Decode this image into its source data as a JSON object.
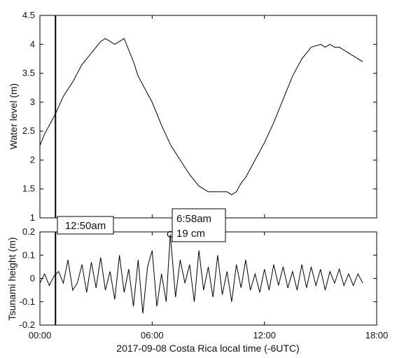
{
  "chart_data": [
    {
      "type": "line",
      "panel": "top",
      "ylabel": "Water level (m)",
      "xlabel": "",
      "xlim": [
        0,
        18
      ],
      "ylim": [
        1,
        4.5
      ],
      "x_tick_labels": [],
      "y_tick_labels": [
        "1",
        "1.5",
        "2",
        "2.5",
        "3",
        "3.5",
        "4",
        "4.5"
      ],
      "y_ticks": [
        1,
        1.5,
        2,
        2.5,
        3,
        3.5,
        4,
        4.5
      ],
      "grid": false,
      "vline_x": 0.833,
      "series": [
        {
          "x": [
            0,
            0.25,
            0.5,
            0.833,
            1.25,
            1.75,
            2.25,
            2.75,
            3.25,
            3.5,
            3.75,
            4.0,
            4.25,
            4.5,
            4.75,
            5.0,
            5.25,
            5.5,
            6.0,
            6.5,
            7.0,
            7.5,
            8.0,
            8.5,
            9.0,
            9.5,
            10.0,
            10.25,
            10.5,
            10.75,
            11.0,
            11.5,
            12.0,
            12.5,
            13.0,
            13.5,
            14.0,
            14.5,
            15.0,
            15.25,
            15.5,
            15.75,
            16.0,
            16.25,
            16.5,
            16.75,
            17.0,
            17.25
          ],
          "y": [
            2.25,
            2.45,
            2.6,
            2.8,
            3.1,
            3.35,
            3.65,
            3.85,
            4.05,
            4.1,
            4.05,
            4.0,
            4.05,
            4.1,
            3.9,
            3.7,
            3.45,
            3.3,
            3.0,
            2.6,
            2.25,
            2.0,
            1.75,
            1.55,
            1.45,
            1.45,
            1.45,
            1.4,
            1.45,
            1.6,
            1.7,
            2.0,
            2.3,
            2.65,
            3.05,
            3.45,
            3.75,
            3.95,
            4.0,
            3.95,
            4.0,
            3.95,
            3.95,
            3.9,
            3.85,
            3.8,
            3.75,
            3.7
          ]
        }
      ]
    },
    {
      "type": "line",
      "panel": "bottom",
      "ylabel": "Tsunami height (m)",
      "xlabel": "2017-09-08 Costa Rica local time (-6UTC)",
      "xlim": [
        0,
        18
      ],
      "ylim": [
        -0.2,
        0.2
      ],
      "x_tick_labels": [
        "00:00",
        "06:00",
        "12:00",
        "18:00"
      ],
      "x_ticks": [
        0,
        6,
        12,
        18
      ],
      "y_tick_labels": [
        "-0.2",
        "-0.1",
        "0",
        "0.1",
        "0.2"
      ],
      "y_ticks": [
        -0.2,
        -0.1,
        0,
        0.1,
        0.2
      ],
      "grid": false,
      "vline_x": 0.833,
      "series": [
        {
          "x": [
            0,
            0.25,
            0.5,
            0.75,
            1.0,
            1.25,
            1.5,
            1.75,
            2.0,
            2.25,
            2.5,
            2.75,
            3.0,
            3.25,
            3.5,
            3.75,
            4.0,
            4.25,
            4.5,
            4.75,
            5.0,
            5.25,
            5.5,
            5.75,
            6.0,
            6.25,
            6.5,
            6.75,
            6.967,
            7.25,
            7.5,
            7.75,
            8.0,
            8.25,
            8.5,
            8.75,
            9.0,
            9.25,
            9.5,
            9.75,
            10.0,
            10.25,
            10.5,
            10.75,
            11.0,
            11.25,
            11.5,
            11.75,
            12.0,
            12.25,
            12.5,
            12.75,
            13.0,
            13.25,
            13.5,
            13.75,
            14.0,
            14.25,
            14.5,
            14.75,
            15.0,
            15.25,
            15.5,
            15.75,
            16.0,
            16.25,
            16.5,
            16.75,
            17.0,
            17.25
          ],
          "y": [
            -0.02,
            0.02,
            -0.03,
            0.01,
            0.03,
            -0.02,
            0.08,
            -0.05,
            -0.02,
            0.06,
            -0.06,
            0.07,
            -0.04,
            0.09,
            -0.05,
            0.03,
            -0.09,
            0.1,
            -0.06,
            0.04,
            -0.12,
            0.08,
            -0.15,
            0.05,
            0.12,
            -0.12,
            0.02,
            -0.1,
            0.19,
            -0.08,
            0.08,
            -0.02,
            0.06,
            -0.1,
            0.12,
            -0.05,
            0.05,
            -0.08,
            0.1,
            -0.07,
            0.03,
            -0.1,
            0.06,
            -0.04,
            0.08,
            -0.05,
            0.02,
            -0.06,
            0.04,
            -0.05,
            0.06,
            -0.03,
            0.05,
            -0.04,
            0.03,
            -0.05,
            0.06,
            -0.04,
            0.05,
            -0.03,
            0.04,
            -0.05,
            0.03,
            -0.02,
            0.04,
            -0.03,
            0.02,
            -0.03,
            0.02,
            -0.02
          ]
        }
      ],
      "peak_marker": {
        "x": 6.967,
        "y": 0.19
      }
    }
  ],
  "annotations": {
    "start_time": "12:50am",
    "peak_time": "6:58am",
    "peak_height": "19 cm"
  }
}
